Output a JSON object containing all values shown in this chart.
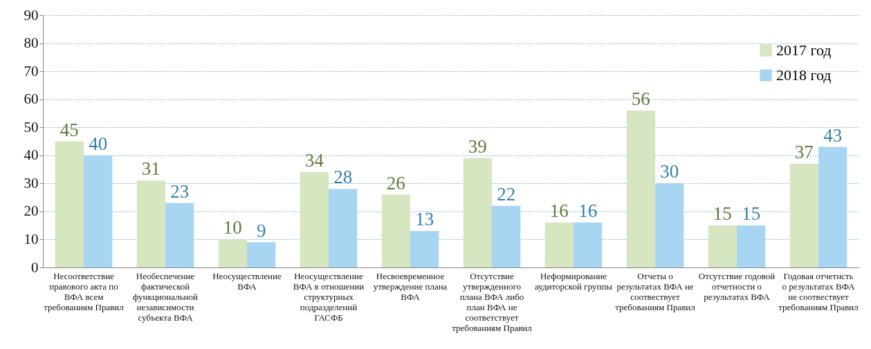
{
  "chart_data": {
    "type": "bar",
    "categories": [
      "Несоответствие правового акта по ВФА всем требованиям Правил",
      "Необеспечение фактической функциональной независимости субъекта ВФА",
      "Неосуществление ВФА",
      "Неосуществление ВФА в отношении структурных подразделений ГАСФБ",
      "Несвоевременное утверждение плана ВФА",
      "Отсутствие утвержденного плана ВФА либо план ВФА не соответствует требованиям Правил",
      "Неформирование аудиторской группы",
      "Отчеты о результатах ВФА не соотвествует требованиям Правил",
      "Отсутствие годовой отчетности о результатах ВФА",
      "Годовая отчетнсть о результатах ВФА не соотвествует требованиям Правил"
    ],
    "series": [
      {
        "name": "2017 год",
        "color": "#d6e6c0",
        "values": [
          45,
          31,
          10,
          34,
          26,
          39,
          16,
          56,
          15,
          37
        ]
      },
      {
        "name": "2018 год",
        "color": "#a8d6f2",
        "values": [
          40,
          23,
          9,
          28,
          13,
          22,
          16,
          30,
          15,
          43
        ]
      }
    ],
    "ylim": [
      0,
      90
    ],
    "yticks": [
      0,
      10,
      20,
      30,
      40,
      50,
      60,
      70,
      80,
      90
    ],
    "grid": "y",
    "legend": "top right",
    "data_labels": true
  }
}
